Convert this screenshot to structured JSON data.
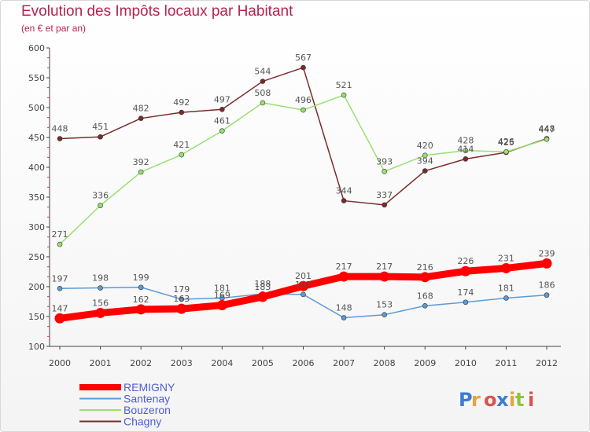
{
  "header": {
    "title": "Evolution des Impôts locaux par Habitant",
    "subtitle": "(en € et par an)"
  },
  "brand": {
    "name": "Proxiti",
    "colors": [
      "#3a7bd5",
      "#e8a33d",
      "#d9534f",
      "#3a7bd5",
      "#e8a33d",
      "#8cc63f",
      "#d9534f"
    ]
  },
  "chart_data": {
    "type": "line",
    "title": "Evolution des Impôts locaux par Habitant",
    "subtitle": "(en € et par an)",
    "xlabel": "",
    "ylabel": "",
    "x": [
      "2000",
      "2001",
      "2002",
      "2003",
      "2004",
      "2005",
      "2006",
      "2007",
      "2008",
      "2009",
      "2010",
      "2011",
      "2012"
    ],
    "ylim": [
      100,
      600
    ],
    "yticks": [
      "100",
      "150",
      "200",
      "250",
      "300",
      "350",
      "400",
      "450",
      "500",
      "550",
      "600"
    ],
    "grid": false,
    "legend_position": "bottom-left",
    "series": [
      {
        "name": "REMIGNY",
        "color": "#ff0000",
        "values": [
          147,
          156,
          162,
          163,
          169,
          183,
          201,
          217,
          217,
          216,
          226,
          231,
          239
        ],
        "labels": [
          "147",
          "156",
          "162",
          "163",
          "169",
          "183",
          "201",
          "217",
          "217",
          "216",
          "226",
          "231",
          "239"
        ],
        "bold": true
      },
      {
        "name": "Santenay",
        "color": "#5b9bd5",
        "values": [
          197,
          198,
          199,
          179,
          181,
          188,
          187,
          148,
          153,
          168,
          174,
          181,
          186
        ],
        "labels": [
          "197",
          "198",
          "199",
          "179",
          "181",
          "188",
          "187",
          "148",
          "153",
          "168",
          "174",
          "181",
          "186"
        ]
      },
      {
        "name": "Bouzeron",
        "color": "#99e070",
        "values": [
          271,
          336,
          392,
          421,
          461,
          508,
          496,
          521,
          393,
          420,
          428,
          426,
          447
        ],
        "labels": [
          "271",
          "336",
          "392",
          "421",
          "461",
          "508",
          "496",
          "521",
          "393",
          "420",
          "428",
          "426",
          "447"
        ]
      },
      {
        "name": "Chagny",
        "color": "#7a2b2b",
        "values": [
          448,
          451,
          482,
          492,
          497,
          544,
          567,
          344,
          337,
          394,
          414,
          425,
          448
        ],
        "labels": [
          "448",
          "451",
          "482",
          "492",
          "497",
          "544",
          "567",
          "344",
          "337",
          "394",
          "414",
          "425",
          "448"
        ]
      }
    ]
  }
}
